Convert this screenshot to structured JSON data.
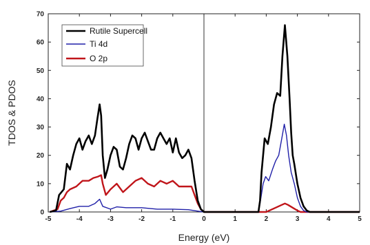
{
  "chart_data": {
    "type": "line",
    "xlabel": "Energy (eV)",
    "ylabel": "TDOS & PDOS",
    "xlim": [
      -5,
      5
    ],
    "ylim": [
      0,
      70
    ],
    "x_ticks": [
      -5,
      -4,
      -3,
      -2,
      -1,
      0,
      1,
      2,
      3,
      4,
      5
    ],
    "y_ticks": [
      0,
      10,
      20,
      30,
      40,
      50,
      60,
      70
    ],
    "vertical_reference_line_x": 0,
    "legend_placement": "top-left",
    "series": [
      {
        "name": "Rutile Supercell",
        "color": "#000000",
        "points": [
          [
            -4.95,
            0
          ],
          [
            -4.75,
            0.5
          ],
          [
            -4.65,
            6
          ],
          [
            -4.5,
            8
          ],
          [
            -4.4,
            17
          ],
          [
            -4.3,
            15
          ],
          [
            -4.2,
            20
          ],
          [
            -4.1,
            24
          ],
          [
            -4.0,
            26
          ],
          [
            -3.9,
            22
          ],
          [
            -3.8,
            25
          ],
          [
            -3.7,
            27
          ],
          [
            -3.6,
            24
          ],
          [
            -3.5,
            27
          ],
          [
            -3.42,
            33
          ],
          [
            -3.35,
            38
          ],
          [
            -3.3,
            34
          ],
          [
            -3.25,
            20
          ],
          [
            -3.18,
            12
          ],
          [
            -3.1,
            15
          ],
          [
            -3.0,
            20
          ],
          [
            -2.9,
            23
          ],
          [
            -2.8,
            22
          ],
          [
            -2.7,
            16
          ],
          [
            -2.6,
            15
          ],
          [
            -2.5,
            19
          ],
          [
            -2.4,
            24
          ],
          [
            -2.3,
            27
          ],
          [
            -2.2,
            26
          ],
          [
            -2.1,
            22
          ],
          [
            -2.0,
            26
          ],
          [
            -1.9,
            28
          ],
          [
            -1.8,
            25
          ],
          [
            -1.7,
            22
          ],
          [
            -1.6,
            22
          ],
          [
            -1.5,
            26
          ],
          [
            -1.4,
            28
          ],
          [
            -1.3,
            26
          ],
          [
            -1.2,
            24
          ],
          [
            -1.1,
            26
          ],
          [
            -1.0,
            21
          ],
          [
            -0.9,
            26
          ],
          [
            -0.8,
            21
          ],
          [
            -0.7,
            19
          ],
          [
            -0.6,
            20
          ],
          [
            -0.5,
            22
          ],
          [
            -0.4,
            19
          ],
          [
            -0.3,
            11
          ],
          [
            -0.2,
            4
          ],
          [
            -0.1,
            1
          ],
          [
            0.0,
            0
          ],
          [
            0.5,
            0
          ],
          [
            1.0,
            0
          ],
          [
            1.5,
            0
          ],
          [
            1.75,
            0
          ],
          [
            1.8,
            4
          ],
          [
            1.85,
            14
          ],
          [
            1.95,
            26
          ],
          [
            2.05,
            24
          ],
          [
            2.15,
            30
          ],
          [
            2.25,
            38
          ],
          [
            2.35,
            42
          ],
          [
            2.45,
            41
          ],
          [
            2.52,
            55
          ],
          [
            2.6,
            66
          ],
          [
            2.68,
            55
          ],
          [
            2.75,
            40
          ],
          [
            2.8,
            28
          ],
          [
            2.85,
            20
          ],
          [
            2.9,
            17
          ],
          [
            3.0,
            10
          ],
          [
            3.1,
            5
          ],
          [
            3.2,
            2
          ],
          [
            3.3,
            0.5
          ],
          [
            3.4,
            0
          ],
          [
            5.0,
            0
          ]
        ]
      },
      {
        "name": "Ti 4d",
        "color": "#1f1fa8",
        "points": [
          [
            -4.95,
            0
          ],
          [
            -4.6,
            0.3
          ],
          [
            -4.3,
            1.2
          ],
          [
            -4.0,
            2.0
          ],
          [
            -3.7,
            2.0
          ],
          [
            -3.5,
            3.0
          ],
          [
            -3.35,
            4.5
          ],
          [
            -3.25,
            2.0
          ],
          [
            -3.0,
            1.0
          ],
          [
            -2.8,
            1.8
          ],
          [
            -2.5,
            1.5
          ],
          [
            -2.0,
            1.5
          ],
          [
            -1.5,
            1.0
          ],
          [
            -1.0,
            1.0
          ],
          [
            -0.5,
            0.8
          ],
          [
            -0.2,
            0.3
          ],
          [
            0.0,
            0
          ],
          [
            1.75,
            0
          ],
          [
            1.8,
            3
          ],
          [
            1.9,
            10
          ],
          [
            1.98,
            12.5
          ],
          [
            2.08,
            11
          ],
          [
            2.2,
            15
          ],
          [
            2.3,
            18
          ],
          [
            2.4,
            20
          ],
          [
            2.5,
            26
          ],
          [
            2.58,
            31
          ],
          [
            2.65,
            27
          ],
          [
            2.72,
            20
          ],
          [
            2.8,
            14
          ],
          [
            2.9,
            10
          ],
          [
            3.0,
            5
          ],
          [
            3.1,
            2
          ],
          [
            3.2,
            0.5
          ],
          [
            3.3,
            0
          ],
          [
            5.0,
            0
          ]
        ]
      },
      {
        "name": "O 2p",
        "color": "#c0151a",
        "points": [
          [
            -4.95,
            0
          ],
          [
            -4.7,
            1
          ],
          [
            -4.6,
            4
          ],
          [
            -4.5,
            5
          ],
          [
            -4.4,
            7
          ],
          [
            -4.3,
            8
          ],
          [
            -4.1,
            9
          ],
          [
            -3.9,
            11
          ],
          [
            -3.7,
            11
          ],
          [
            -3.55,
            12
          ],
          [
            -3.4,
            12.5
          ],
          [
            -3.3,
            13
          ],
          [
            -3.25,
            10
          ],
          [
            -3.15,
            6
          ],
          [
            -3.0,
            8
          ],
          [
            -2.8,
            10
          ],
          [
            -2.6,
            7
          ],
          [
            -2.4,
            9
          ],
          [
            -2.2,
            11
          ],
          [
            -2.0,
            12
          ],
          [
            -1.8,
            10
          ],
          [
            -1.6,
            9
          ],
          [
            -1.4,
            11
          ],
          [
            -1.2,
            10
          ],
          [
            -1.0,
            11
          ],
          [
            -0.8,
            9
          ],
          [
            -0.6,
            9
          ],
          [
            -0.4,
            9
          ],
          [
            -0.3,
            6
          ],
          [
            -0.2,
            3
          ],
          [
            -0.1,
            1
          ],
          [
            0.0,
            0
          ],
          [
            2.0,
            0
          ],
          [
            2.1,
            0.5
          ],
          [
            2.3,
            1.5
          ],
          [
            2.5,
            2.5
          ],
          [
            2.6,
            3
          ],
          [
            2.7,
            2.5
          ],
          [
            2.85,
            1.5
          ],
          [
            3.0,
            0.5
          ],
          [
            3.1,
            0
          ],
          [
            5.0,
            0
          ]
        ]
      }
    ]
  }
}
